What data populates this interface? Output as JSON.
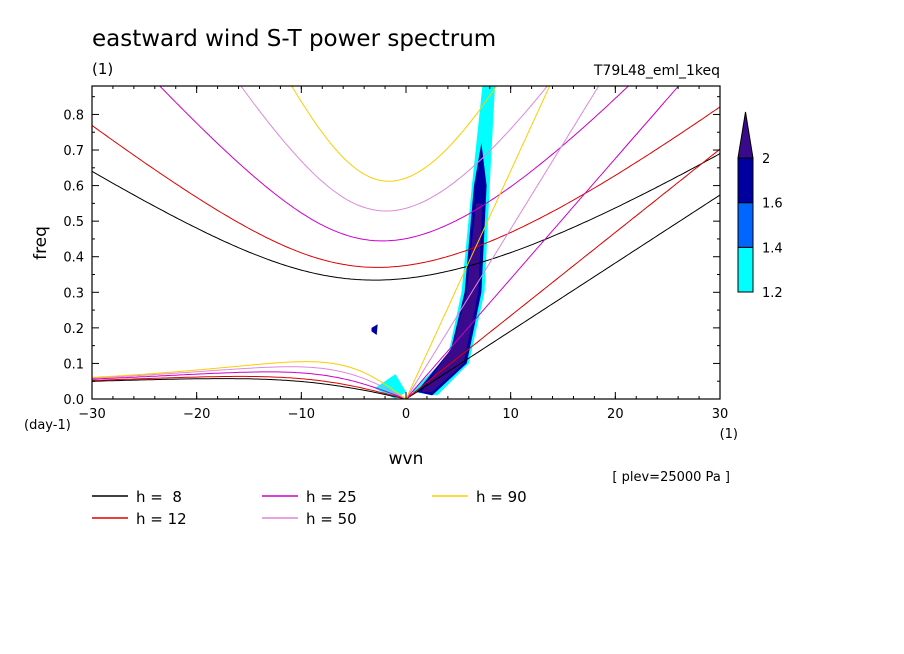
{
  "chart_data": {
    "type": "heatmap",
    "title": "eastward wind S-T power spectrum",
    "subtitle_left": "(1)",
    "subtitle_right": "T79L48_eml_1keq",
    "xlabel": "wvn",
    "ylabel": "freq",
    "x_unit": "(1)",
    "y_unit": "(day-1)",
    "xlim": [
      -30,
      30
    ],
    "ylim": [
      0,
      0.88
    ],
    "x_ticks": [
      -30,
      -20,
      -10,
      0,
      10,
      20,
      30
    ],
    "x_tick_labels": [
      "−30",
      "−20",
      "−10",
      "0",
      "10",
      "20",
      "30"
    ],
    "y_ticks": [
      0,
      0.1,
      0.2,
      0.3,
      0.4,
      0.5,
      0.6,
      0.7,
      0.8
    ],
    "y_tick_labels": [
      "0.0",
      "0.1",
      "0.2",
      "0.3",
      "0.4",
      "0.5",
      "0.6",
      "0.7",
      "0.8"
    ],
    "annotation": "[ plev=25000 Pa ]",
    "colorbar": {
      "levels": [
        1.2,
        1.4,
        1.6,
        2
      ],
      "level_labels": [
        "1.2",
        "1.4",
        "1.6",
        "2"
      ],
      "colors": [
        "#00ffff",
        "#0066ff",
        "#0000a0",
        "#3a0a8c"
      ]
    },
    "shaded_regions": [
      {
        "level": 1.2,
        "polygon": [
          [
            0.5,
            0.02
          ],
          [
            4,
            0.12
          ],
          [
            5.3,
            0.3
          ],
          [
            6.3,
            0.6
          ],
          [
            7.3,
            0.88
          ],
          [
            8.5,
            0.88
          ],
          [
            8,
            0.6
          ],
          [
            7.5,
            0.3
          ],
          [
            6,
            0.1
          ],
          [
            3,
            0.01
          ]
        ]
      },
      {
        "level": 1.6,
        "polygon": [
          [
            1,
            0.02
          ],
          [
            4.3,
            0.14
          ],
          [
            5.6,
            0.3
          ],
          [
            6.5,
            0.6
          ],
          [
            7.2,
            0.72
          ],
          [
            7.7,
            0.6
          ],
          [
            7.2,
            0.3
          ],
          [
            5.8,
            0.1
          ],
          [
            2.5,
            0.01
          ]
        ]
      },
      {
        "level": 2,
        "polygon": [
          [
            1.5,
            0.02
          ],
          [
            4.5,
            0.15
          ],
          [
            5.8,
            0.3
          ],
          [
            6.7,
            0.55
          ],
          [
            7.3,
            0.55
          ],
          [
            6.9,
            0.3
          ],
          [
            5.5,
            0.1
          ],
          [
            2.5,
            0.02
          ]
        ]
      },
      {
        "level": 1.2,
        "polygon": [
          [
            -3,
            0.03
          ],
          [
            -1,
            0.07
          ],
          [
            0,
            0.02
          ],
          [
            -1,
            0.0
          ]
        ]
      },
      {
        "level": 1.6,
        "polygon": [
          [
            -3.3,
            0.2
          ],
          [
            -2.7,
            0.21
          ],
          [
            -2.8,
            0.18
          ],
          [
            -3.3,
            0.19
          ]
        ]
      }
    ],
    "series": [
      {
        "name": "h =  8",
        "color": "#000000",
        "h": 8
      },
      {
        "name": "h = 12",
        "color": "#dd0000",
        "h": 12
      },
      {
        "name": "h = 25",
        "color": "#cc00cc",
        "h": 25
      },
      {
        "name": "h = 50",
        "color": "#dd88dd",
        "h": 50
      },
      {
        "name": "h = 90",
        "color": "#ffcc00",
        "h": 90
      }
    ],
    "legend_position": "bottom"
  }
}
